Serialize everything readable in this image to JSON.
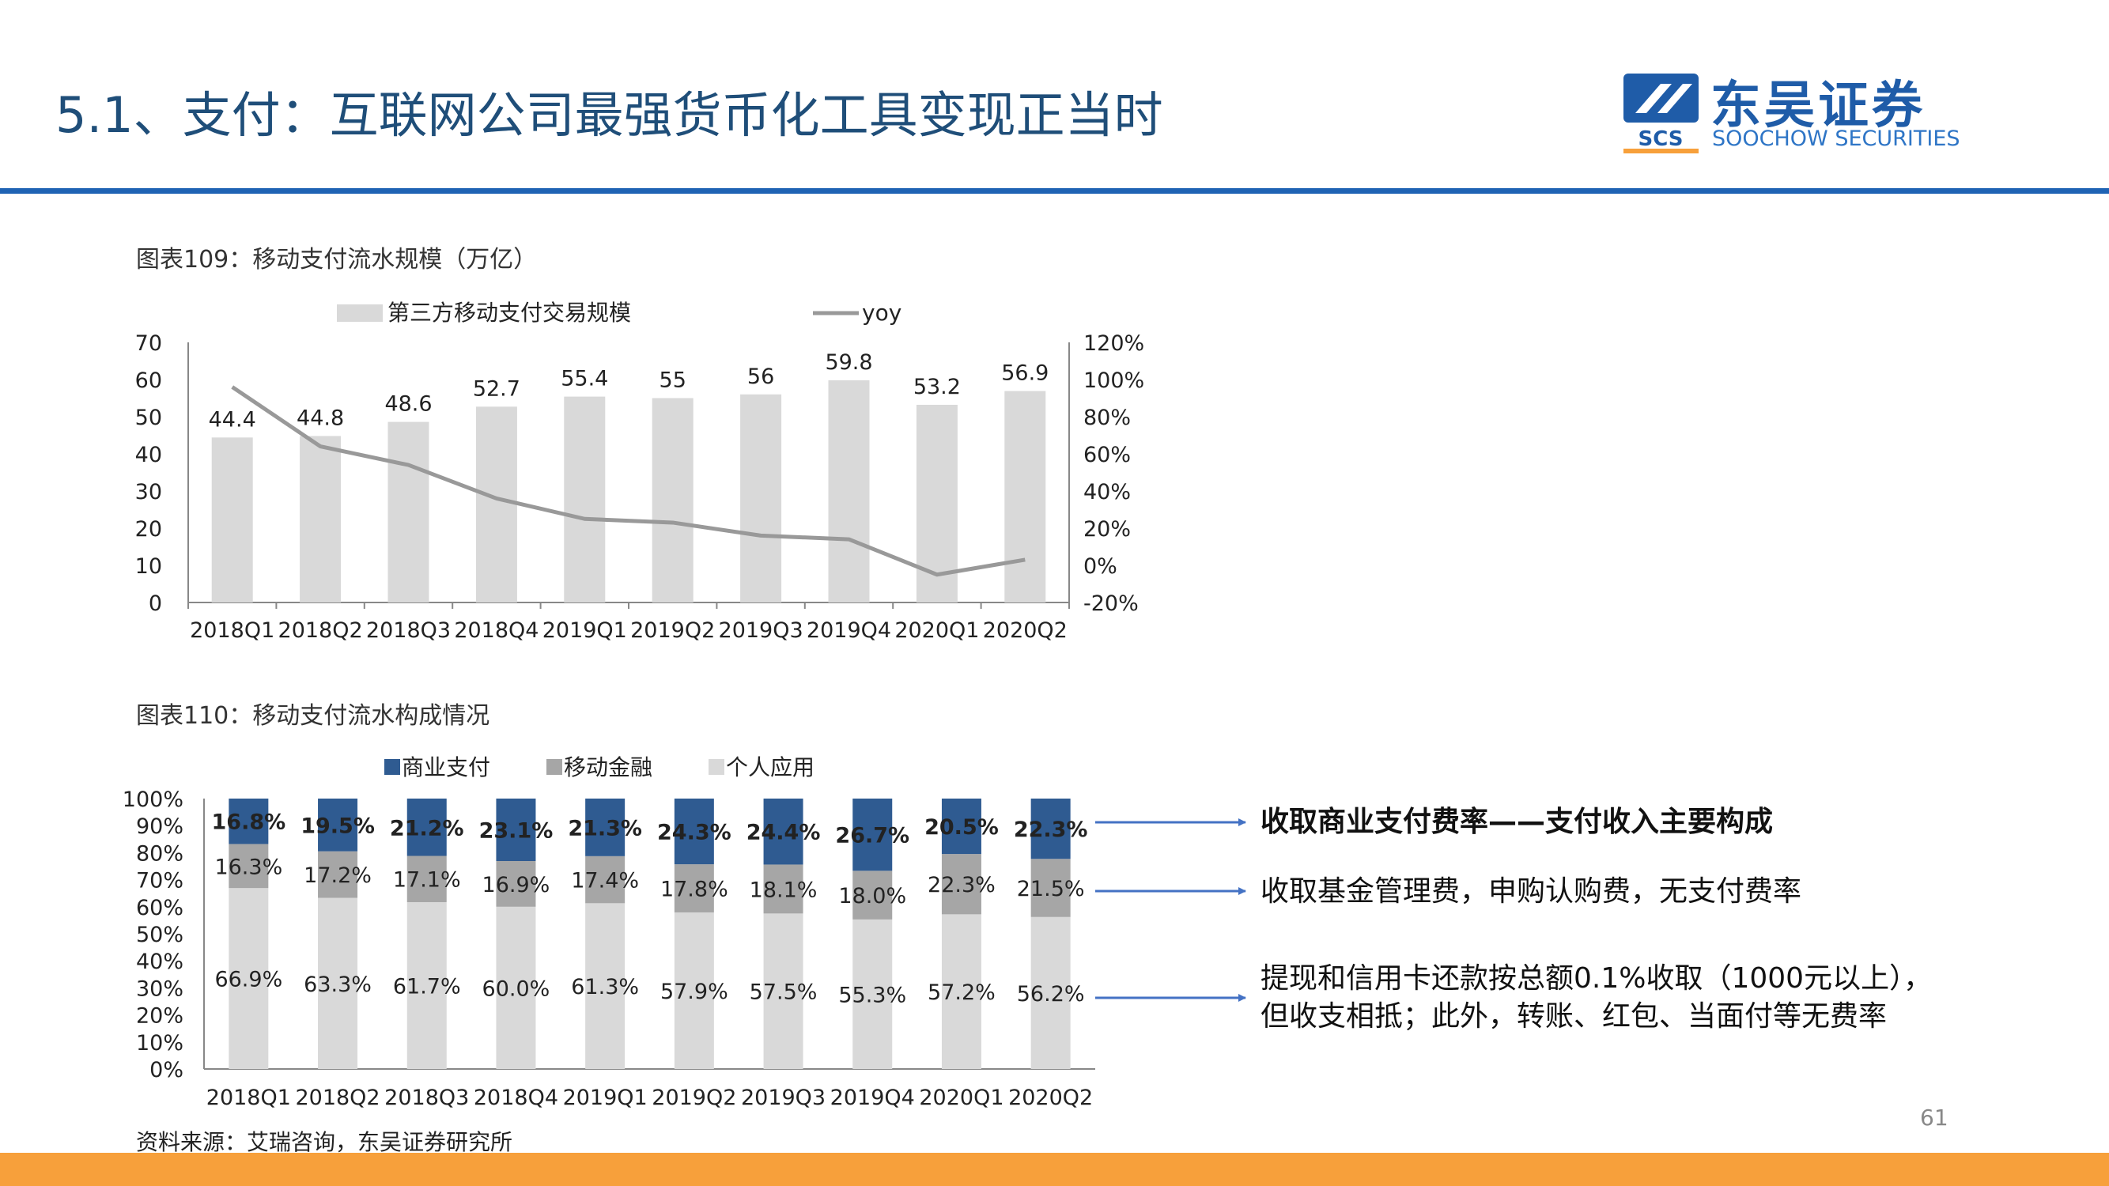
{
  "title": "5.1、支付：互联网公司最强货币化工具变现正当时",
  "logo": {
    "cn": "东吴证券",
    "en": "SOOCHOW SECURITIES",
    "mark": "SCS"
  },
  "colors": {
    "title": "#1f4e79",
    "rule": "#1f63b4",
    "bottom_bar": "#f7a03b",
    "navy": "#2f5b91",
    "mid_gray": "#a6a6a6",
    "light_gray": "#d9d9d9",
    "line_gray": "#999999",
    "arrow": "#4472c4"
  },
  "chart_data": [
    {
      "type": "bar",
      "title": "图表109：移动支付流水规模（万亿）",
      "categories": [
        "2018Q1",
        "2018Q2",
        "2018Q3",
        "2018Q4",
        "2019Q1",
        "2019Q2",
        "2019Q3",
        "2019Q4",
        "2020Q1",
        "2020Q2"
      ],
      "series": [
        {
          "name": "第三方移动支付交易规模",
          "kind": "bar",
          "axis": "left",
          "values": [
            44.4,
            44.8,
            48.6,
            52.7,
            55.4,
            55,
            56,
            59.8,
            53.2,
            56.9
          ],
          "labels": [
            "44.4",
            "44.8",
            "48.6",
            "52.7",
            "55.4",
            "55",
            "56",
            "59.8",
            "53.2",
            "56.9"
          ]
        },
        {
          "name": "yoy",
          "kind": "line",
          "axis": "right",
          "values": [
            96,
            64,
            54,
            36,
            25,
            23,
            16,
            14,
            -5,
            3
          ]
        }
      ],
      "ylim_left": [
        0,
        70
      ],
      "yticks_left": [
        "0",
        "10",
        "20",
        "30",
        "40",
        "50",
        "60",
        "70"
      ],
      "ylim_right": [
        -20,
        120
      ],
      "yticks_right": [
        "-20%",
        "0%",
        "20%",
        "40%",
        "60%",
        "80%",
        "100%",
        "120%"
      ],
      "legend": "top",
      "grid": false
    },
    {
      "type": "bar",
      "stacked": true,
      "title": "图表110：移动支付流水构成情况",
      "categories": [
        "2018Q1",
        "2018Q2",
        "2018Q3",
        "2018Q4",
        "2019Q1",
        "2019Q2",
        "2019Q3",
        "2019Q4",
        "2020Q1",
        "2020Q2"
      ],
      "series": [
        {
          "name": "个人应用",
          "values": [
            66.9,
            63.3,
            61.7,
            60.0,
            61.3,
            57.9,
            57.5,
            55.3,
            57.2,
            56.2
          ],
          "labels": [
            "66.9%",
            "63.3%",
            "61.7%",
            "60.0%",
            "61.3%",
            "57.9%",
            "57.5%",
            "55.3%",
            "57.2%",
            "56.2%"
          ]
        },
        {
          "name": "移动金融",
          "values": [
            16.3,
            17.2,
            17.1,
            16.9,
            17.4,
            17.8,
            18.1,
            18.0,
            22.3,
            21.5
          ],
          "labels": [
            "16.3%",
            "17.2%",
            "17.1%",
            "16.9%",
            "17.4%",
            "17.8%",
            "18.1%",
            "18.0%",
            "22.3%",
            "21.5%"
          ]
        },
        {
          "name": "商业支付",
          "values": [
            16.8,
            19.5,
            21.2,
            23.1,
            21.3,
            24.3,
            24.4,
            26.7,
            20.5,
            22.3
          ],
          "labels": [
            "16.8%",
            "19.5%",
            "21.2%",
            "23.1%",
            "21.3%",
            "24.3%",
            "24.4%",
            "26.7%",
            "20.5%",
            "22.3%"
          ]
        }
      ],
      "legend_order": [
        "商业支付",
        "移动金融",
        "个人应用"
      ],
      "ylim": [
        0,
        100
      ],
      "yticks": [
        "0%",
        "10%",
        "20%",
        "30%",
        "40%",
        "50%",
        "60%",
        "70%",
        "80%",
        "90%",
        "100%"
      ],
      "legend": "top",
      "grid": false
    }
  ],
  "notes": [
    {
      "lines": [
        "收取商业支付费率——支付收入主要构成"
      ]
    },
    {
      "lines": [
        "收取基金管理费，申购认购费，无支付费率"
      ]
    },
    {
      "lines": [
        "提现和信用卡还款按总额0.1%收取（1000元以上），",
        "但收支相抵；此外，转账、红包、当面付等无费率"
      ]
    }
  ],
  "source": "资料来源：艾瑞咨询，东吴证券研究所",
  "page_number": "61"
}
